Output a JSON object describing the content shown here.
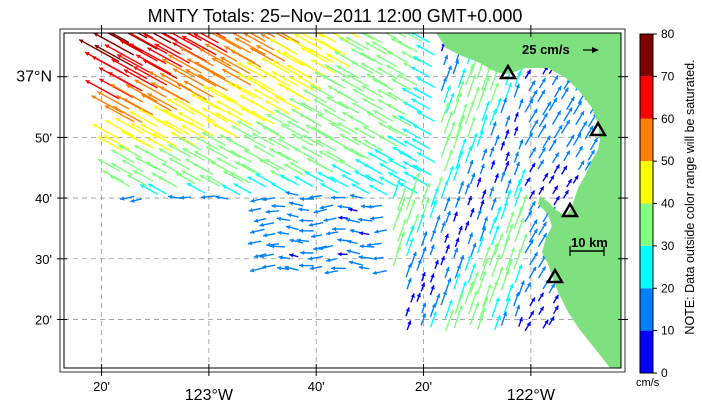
{
  "title": "MNTY Totals: 25−Nov−2011 12:00 GMT+0.000",
  "map": {
    "ocean_color": "#ffffff",
    "land_color": "#7ee07e",
    "grid": true,
    "lat_ticks": [
      {
        "value": 37.0,
        "label": "37°N",
        "major": true
      },
      {
        "value": 36.8333,
        "label": "50'",
        "major": false
      },
      {
        "value": 36.6667,
        "label": "40'",
        "major": false
      },
      {
        "value": 36.5,
        "label": "30'",
        "major": false
      },
      {
        "value": 36.3333,
        "label": "20'",
        "major": false
      }
    ],
    "lon_ticks": [
      {
        "value": -123.3333,
        "label": "20'",
        "major": false
      },
      {
        "value": -123.0,
        "label": "123°W",
        "major": true
      },
      {
        "value": -122.6667,
        "label": "40'",
        "major": false
      },
      {
        "value": -122.3333,
        "label": "20'",
        "major": false
      },
      {
        "value": -122.0,
        "label": "122°W",
        "major": true
      }
    ],
    "lon_range": [
      -123.45,
      -121.72
    ],
    "lat_range": [
      36.2,
      37.12
    ],
    "scale_arrow_label": "25 cm/s",
    "scale_bar_label": "10 km",
    "stations": [
      "station-1",
      "station-2",
      "station-3",
      "station-4"
    ]
  },
  "colorbar": {
    "ticks": [
      "0",
      "10",
      "20",
      "30",
      "40",
      "50",
      "60",
      "70",
      "80"
    ],
    "colors": [
      "#0000ff",
      "#0080ff",
      "#00ffff",
      "#80ff80",
      "#ffff00",
      "#ff8000",
      "#ff0000",
      "#800000"
    ],
    "unit": "cm/s",
    "note": "NOTE: Data outside color range will be saturated."
  }
}
